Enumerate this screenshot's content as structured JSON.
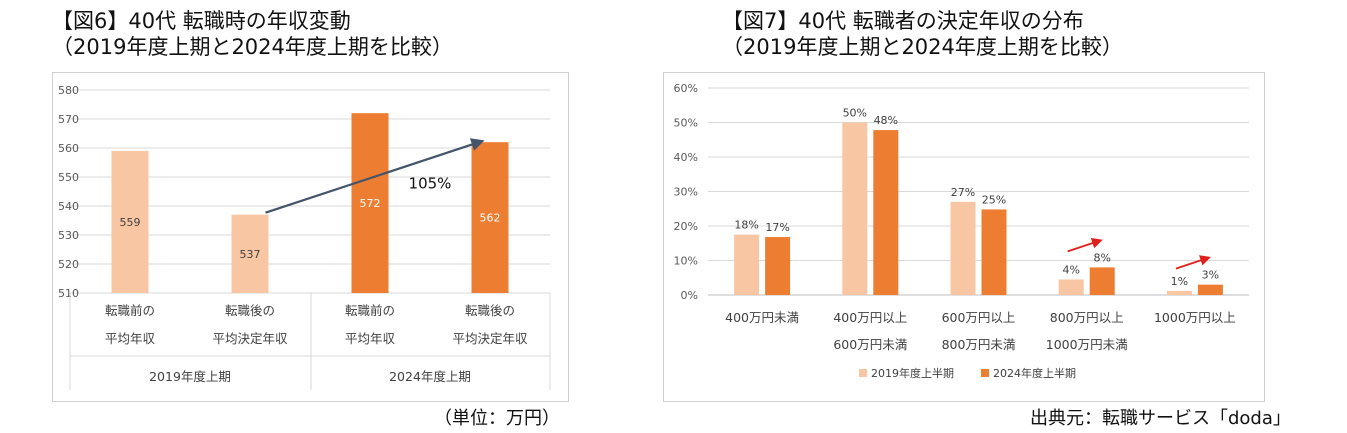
{
  "chart6": {
    "title_line1": "【図6】40代 転職時の年収変動",
    "title_line2": "（2019年度上期と2024年度上期を比較）",
    "unit_note": "（単位：万円）",
    "colors": {
      "light": "#f8c6a3",
      "dark": "#ed7d31",
      "arrow": "#44546a"
    },
    "chart_data": {
      "type": "bar",
      "categories": [
        {
          "line1": "転職前の",
          "line2": "平均年収",
          "group": "2019年度上期"
        },
        {
          "line1": "転職後の",
          "line2": "平均決定年収",
          "group": "2019年度上期"
        },
        {
          "line1": "転職前の",
          "line2": "平均年収",
          "group": "2024年度上期"
        },
        {
          "line1": "転職後の",
          "line2": "平均決定年収",
          "group": "2024年度上期"
        }
      ],
      "groups": [
        "2019年度上期",
        "2024年度上期"
      ],
      "values": [
        559,
        537,
        572,
        562
      ],
      "data_labels": [
        "559",
        "537",
        "572",
        "562"
      ],
      "ylim": [
        510,
        580
      ],
      "yticks": [
        510,
        520,
        530,
        540,
        550,
        560,
        570,
        580
      ],
      "annotation": "105%",
      "grid": true
    }
  },
  "chart7": {
    "title_line1": "【図7】40代 転職者の決定年収の分布",
    "title_line2": "（2019年度上期と2024年度上期を比較）",
    "source": "出典元：転職サービス「doda」",
    "colors": {
      "s2019": "#f8c6a3",
      "s2024": "#ed7d31",
      "arrow": "#e0201b"
    },
    "chart_data": {
      "type": "bar",
      "categories": [
        {
          "line1": "400万円未満",
          "line2": ""
        },
        {
          "line1": "400万円以上",
          "line2": "600万円未満"
        },
        {
          "line1": "600万円以上",
          "line2": "800万円未満"
        },
        {
          "line1": "800万円以上",
          "line2": "1000万円未満"
        },
        {
          "line1": "1000万円以上",
          "line2": ""
        }
      ],
      "series": [
        {
          "name": "2019年度上半期",
          "values": [
            0.175,
            0.5,
            0.27,
            0.045,
            0.012
          ],
          "labels": [
            "18%",
            "50%",
            "27%",
            "4%",
            "1%"
          ]
        },
        {
          "name": "2024年度上半期",
          "values": [
            0.168,
            0.478,
            0.248,
            0.08,
            0.03
          ],
          "labels": [
            "17%",
            "48%",
            "25%",
            "8%",
            "3%"
          ]
        }
      ],
      "ylim": [
        0,
        0.6
      ],
      "yticks": [
        "0%",
        "10%",
        "20%",
        "30%",
        "40%",
        "50%",
        "60%"
      ],
      "legend_position": "bottom",
      "grid": true
    }
  }
}
